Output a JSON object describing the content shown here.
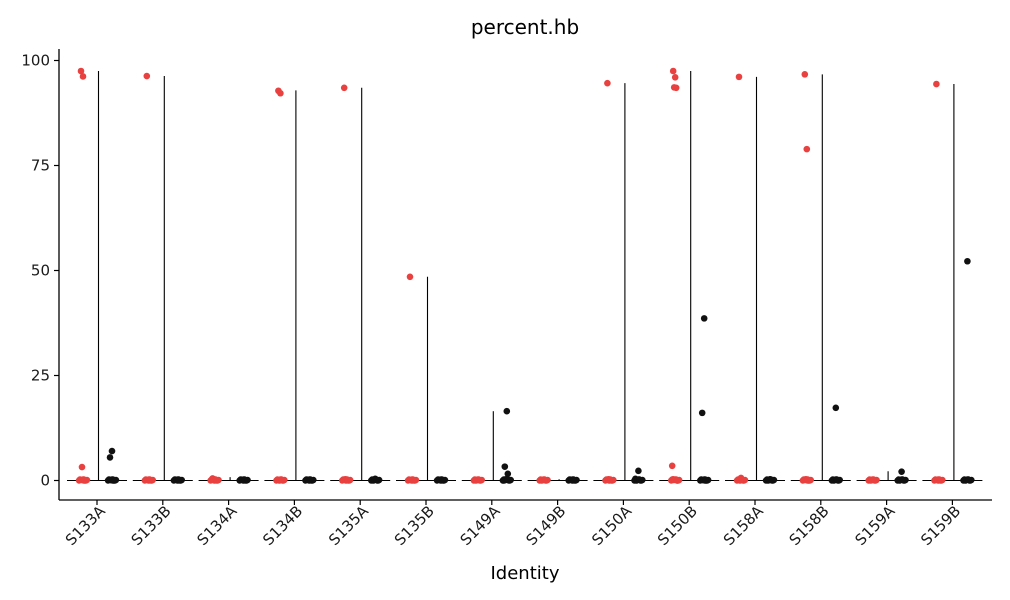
{
  "chart_data": {
    "type": "scatter",
    "title": "percent.hb",
    "xlabel": "Identity",
    "ylabel": "",
    "ylim": [
      -4.5,
      103
    ],
    "yticks": [
      0,
      25,
      50,
      75,
      100
    ],
    "grid": false,
    "legend": "none",
    "colors": {
      "red": "#e8413f",
      "black": "#111111",
      "violin": "#000000"
    },
    "categories": [
      "S133A",
      "S133B",
      "S134A",
      "S134B",
      "S135A",
      "S135B",
      "S149A",
      "S149B",
      "S150A",
      "S150B",
      "S158A",
      "S158B",
      "S159A",
      "S159B"
    ],
    "violins": [
      {
        "category": "S133A",
        "max": 97.5
      },
      {
        "category": "S133B",
        "max": 96.3
      },
      {
        "category": "S134A",
        "max": 0.8
      },
      {
        "category": "S134B",
        "max": 92.9
      },
      {
        "category": "S135A",
        "max": 93.5
      },
      {
        "category": "S135B",
        "max": 48.5
      },
      {
        "category": "S149A",
        "max": 16.5
      },
      {
        "category": "S149B",
        "max": 0.3
      },
      {
        "category": "S150A",
        "max": 94.6
      },
      {
        "category": "S150B",
        "max": 97.5
      },
      {
        "category": "S158A",
        "max": 96.1
      },
      {
        "category": "S158B",
        "max": 96.7
      },
      {
        "category": "S159A",
        "max": 2.2
      },
      {
        "category": "S159B",
        "max": 94.4
      }
    ],
    "series": [
      {
        "color": "red",
        "points": [
          {
            "category": "S133A",
            "y": 97.5
          },
          {
            "category": "S133A",
            "y": 96.2
          },
          {
            "category": "S133A",
            "y": 3.2
          },
          {
            "category": "S133A",
            "y": 0
          },
          {
            "category": "S133A",
            "y": 0.2
          },
          {
            "category": "S133B",
            "y": 96.3
          },
          {
            "category": "S133B",
            "y": 0
          },
          {
            "category": "S133B",
            "y": 0.1
          },
          {
            "category": "S134A",
            "y": 0.5
          },
          {
            "category": "S134A",
            "y": 0
          },
          {
            "category": "S134A",
            "y": 0.2
          },
          {
            "category": "S134B",
            "y": 92.8
          },
          {
            "category": "S134B",
            "y": 92.2
          },
          {
            "category": "S134B",
            "y": 0
          },
          {
            "category": "S134B",
            "y": 0.2
          },
          {
            "category": "S135A",
            "y": 93.5
          },
          {
            "category": "S135A",
            "y": 0
          },
          {
            "category": "S135A",
            "y": 0.3
          },
          {
            "category": "S135A",
            "y": 0.1
          },
          {
            "category": "S135B",
            "y": 48.5
          },
          {
            "category": "S135B",
            "y": 0
          },
          {
            "category": "S135B",
            "y": 0.1
          },
          {
            "category": "S149A",
            "y": 0
          },
          {
            "category": "S149A",
            "y": 0.1
          },
          {
            "category": "S149B",
            "y": 0
          },
          {
            "category": "S149B",
            "y": 0.1
          },
          {
            "category": "S150A",
            "y": 94.6
          },
          {
            "category": "S150A",
            "y": 0
          },
          {
            "category": "S150A",
            "y": 0.3
          },
          {
            "category": "S150A",
            "y": 0.1
          },
          {
            "category": "S150B",
            "y": 97.5
          },
          {
            "category": "S150B",
            "y": 96.0
          },
          {
            "category": "S150B",
            "y": 93.6
          },
          {
            "category": "S150B",
            "y": 93.5
          },
          {
            "category": "S150B",
            "y": 3.5
          },
          {
            "category": "S150B",
            "y": 0
          },
          {
            "category": "S150B",
            "y": 0.3
          },
          {
            "category": "S158A",
            "y": 96.1
          },
          {
            "category": "S158A",
            "y": 0.6
          },
          {
            "category": "S158A",
            "y": 0
          },
          {
            "category": "S158A",
            "y": 0.2
          },
          {
            "category": "S158B",
            "y": 96.7
          },
          {
            "category": "S158B",
            "y": 78.9
          },
          {
            "category": "S158B",
            "y": 0.3
          },
          {
            "category": "S158B",
            "y": 0
          },
          {
            "category": "S159A",
            "y": 0
          },
          {
            "category": "S159A",
            "y": 0.1
          },
          {
            "category": "S159B",
            "y": 94.4
          },
          {
            "category": "S159B",
            "y": 0
          },
          {
            "category": "S159B",
            "y": 0.2
          }
        ]
      },
      {
        "color": "black",
        "points": [
          {
            "category": "S133A",
            "y": 7.0
          },
          {
            "category": "S133A",
            "y": 5.5
          },
          {
            "category": "S133A",
            "y": 0
          },
          {
            "category": "S133A",
            "y": 0.2
          },
          {
            "category": "S133A",
            "y": 0.1
          },
          {
            "category": "S133B",
            "y": 0
          },
          {
            "category": "S133B",
            "y": 0.2
          },
          {
            "category": "S133B",
            "y": 0.1
          },
          {
            "category": "S134A",
            "y": 0
          },
          {
            "category": "S134A",
            "y": 0.2
          },
          {
            "category": "S134A",
            "y": 0.1
          },
          {
            "category": "S134B",
            "y": 0
          },
          {
            "category": "S134B",
            "y": 0.2
          },
          {
            "category": "S134B",
            "y": 0.1
          },
          {
            "category": "S135A",
            "y": 0.4
          },
          {
            "category": "S135A",
            "y": 0
          },
          {
            "category": "S135A",
            "y": 0.2
          },
          {
            "category": "S135A",
            "y": 0.1
          },
          {
            "category": "S135B",
            "y": 0
          },
          {
            "category": "S135B",
            "y": 0.2
          },
          {
            "category": "S135B",
            "y": 0.1
          },
          {
            "category": "S149A",
            "y": 16.5
          },
          {
            "category": "S149A",
            "y": 3.3
          },
          {
            "category": "S149A",
            "y": 1.6
          },
          {
            "category": "S149A",
            "y": 0
          },
          {
            "category": "S149A",
            "y": 0.3
          },
          {
            "category": "S149B",
            "y": 0
          },
          {
            "category": "S149B",
            "y": 0.2
          },
          {
            "category": "S149B",
            "y": 0.1
          },
          {
            "category": "S150A",
            "y": 2.3
          },
          {
            "category": "S150A",
            "y": 0
          },
          {
            "category": "S150A",
            "y": 0.2
          },
          {
            "category": "S150A",
            "y": 0.4
          },
          {
            "category": "S150B",
            "y": 38.6
          },
          {
            "category": "S150B",
            "y": 16.1
          },
          {
            "category": "S150B",
            "y": 0
          },
          {
            "category": "S150B",
            "y": 0.2
          },
          {
            "category": "S150B",
            "y": 0.1
          },
          {
            "category": "S158A",
            "y": 0.3
          },
          {
            "category": "S158A",
            "y": 0
          },
          {
            "category": "S158A",
            "y": 0.1
          },
          {
            "category": "S158B",
            "y": 17.3
          },
          {
            "category": "S158B",
            "y": 0
          },
          {
            "category": "S158B",
            "y": 0.2
          },
          {
            "category": "S158B",
            "y": 0.1
          },
          {
            "category": "S159A",
            "y": 2.1
          },
          {
            "category": "S159A",
            "y": 0
          },
          {
            "category": "S159A",
            "y": 0.2
          },
          {
            "category": "S159B",
            "y": 52.2
          },
          {
            "category": "S159B",
            "y": 0
          },
          {
            "category": "S159B",
            "y": 0.2
          },
          {
            "category": "S159B",
            "y": 0.1
          }
        ]
      }
    ]
  }
}
